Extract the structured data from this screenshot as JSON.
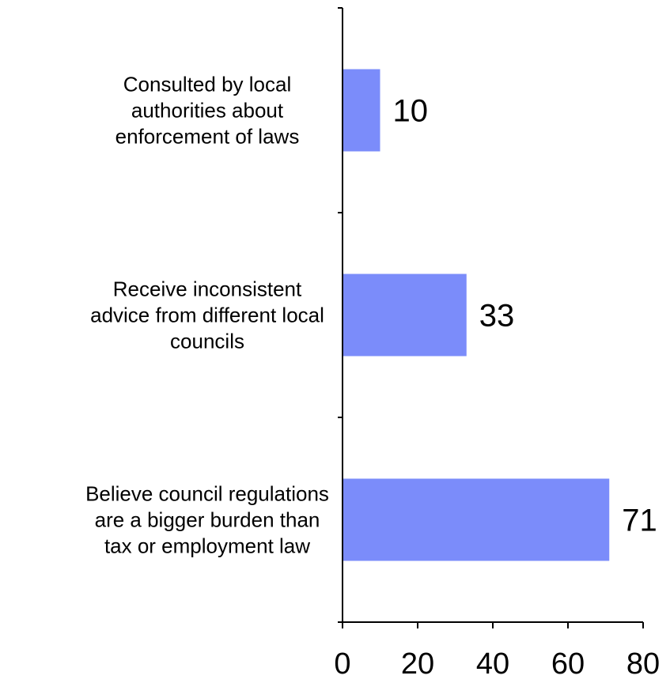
{
  "chart_data": {
    "type": "bar",
    "orientation": "horizontal",
    "title": "",
    "categories": [
      [
        "Consulted by local",
        "authorities about",
        "enforcement of laws"
      ],
      [
        "Receive inconsistent",
        "advice from different local",
        "councils"
      ],
      [
        "Believe council regulations",
        "are a bigger burden than",
        "tax or employment law"
      ]
    ],
    "values": [
      10,
      33,
      71
    ],
    "value_labels": [
      "10",
      "33",
      "71"
    ],
    "xlim": [
      0,
      80
    ],
    "x_ticks": [
      0,
      20,
      40,
      60,
      80
    ],
    "x_tick_labels": [
      "0",
      "20",
      "40",
      "60",
      "80"
    ],
    "xlabel": "",
    "ylabel": "",
    "grid": false,
    "bar_color": "#7b8cfa",
    "title_color": "#6f7ff0"
  }
}
